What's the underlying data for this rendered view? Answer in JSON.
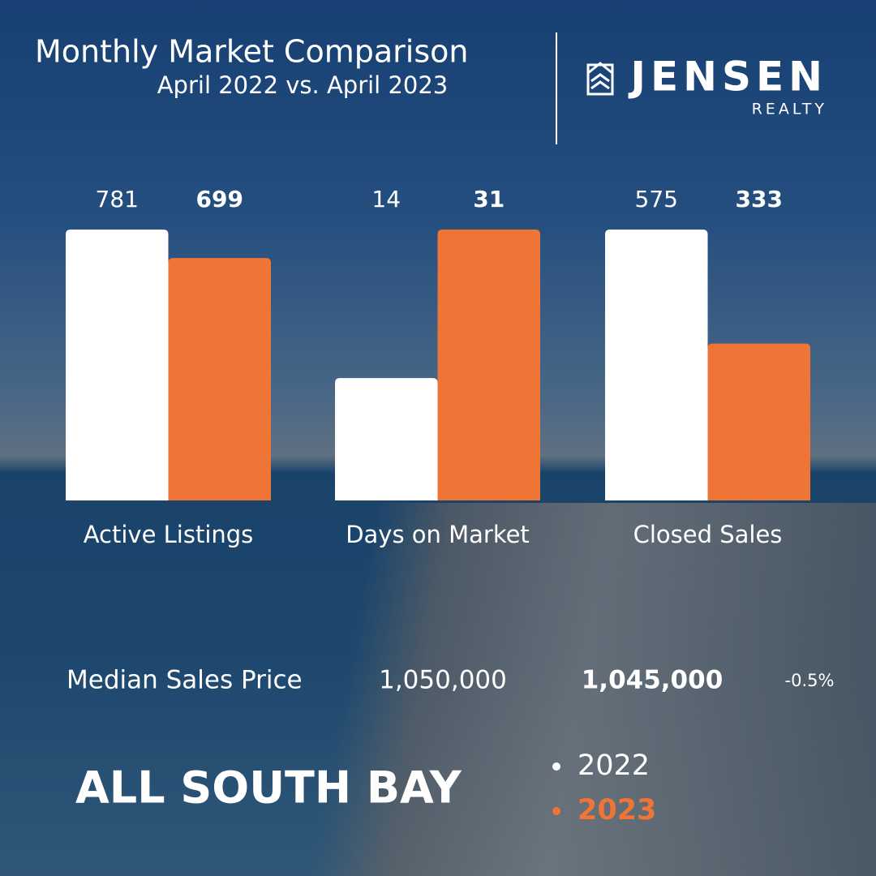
{
  "chart_data": {
    "type": "bar",
    "title": "Monthly Market Comparison",
    "subtitle": "April 2022 vs. April 2023",
    "categories": [
      "Active Listings",
      "Days on Market",
      "Closed Sales"
    ],
    "series": [
      {
        "name": "2022",
        "color": "#ffffff",
        "values": [
          781,
          14,
          575
        ]
      },
      {
        "name": "2023",
        "color": "#ef7536",
        "values": [
          699,
          31,
          333
        ]
      }
    ]
  },
  "median": {
    "label": "Median Sales Price",
    "values": [
      "1,050,000",
      "1,045,000"
    ],
    "change": "-0.5%"
  },
  "region": "ALL SOUTH BAY",
  "brand": {
    "name": "JENSEN",
    "sub": "REALTY"
  }
}
